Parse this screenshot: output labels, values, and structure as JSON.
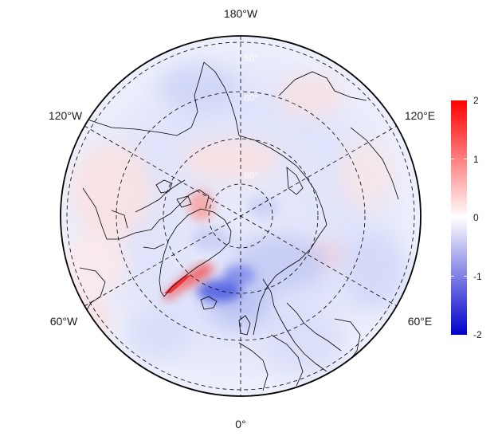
{
  "map": {
    "projection": "north-polar-stereographic",
    "longitude_labels": {
      "top": "180°W",
      "bottom": "0°",
      "upper_left": "120°W",
      "upper_right": "120°E",
      "lower_left": "60°W",
      "lower_right": "60°E"
    },
    "latitude_labels": [
      "50°",
      "60°",
      "80°"
    ],
    "gridlines": "dashed",
    "colors": {
      "negative": "#0000cc",
      "neutral": "#ffffff",
      "positive": "#ff0000",
      "coastline": "#000000"
    }
  },
  "colorbar": {
    "min": -2,
    "max": 2,
    "ticks": [
      "2",
      "1",
      "0",
      "-1",
      "-2"
    ],
    "placement": "right"
  }
}
